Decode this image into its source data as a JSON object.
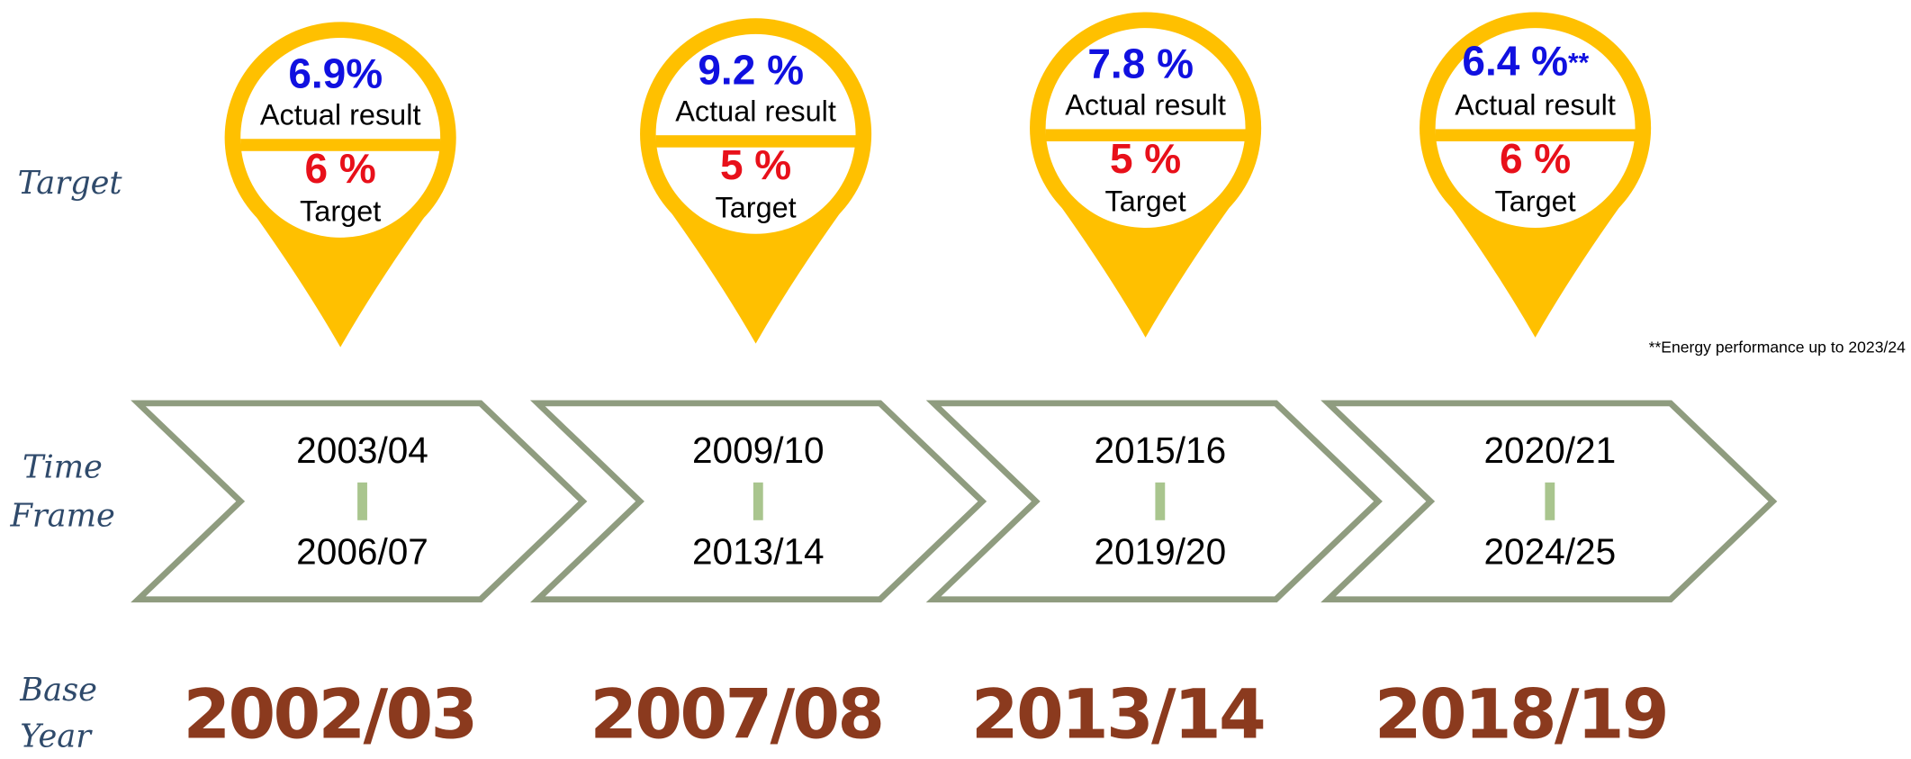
{
  "row_labels": {
    "target": "Target",
    "time_frame": [
      "Time",
      "Frame"
    ],
    "base_year": [
      "Base",
      "Year"
    ]
  },
  "periods": [
    {
      "actual": "6.9%",
      "actual_label": "Actual result",
      "target": "6 %",
      "target_label": "Target",
      "start": "2003/04",
      "end": "2006/07",
      "base_year": "2002/03"
    },
    {
      "actual": "9.2 %",
      "actual_label": "Actual result",
      "target": "5 %",
      "target_label": "Target",
      "start": "2009/10",
      "end": "2013/14",
      "base_year": "2007/08"
    },
    {
      "actual": "7.8 %",
      "actual_label": "Actual result",
      "target": "5 %",
      "target_label": "Target",
      "start": "2015/16",
      "end": "2019/20",
      "base_year": "2013/14"
    },
    {
      "actual": "6.4 %",
      "actual_note": "**",
      "actual_label": "Actual result",
      "target": "6 %",
      "target_label": "Target",
      "start": "2020/21",
      "end": "2024/25",
      "base_year": "2018/19"
    }
  ],
  "footnote": "**Energy performance up to 2023/24"
}
